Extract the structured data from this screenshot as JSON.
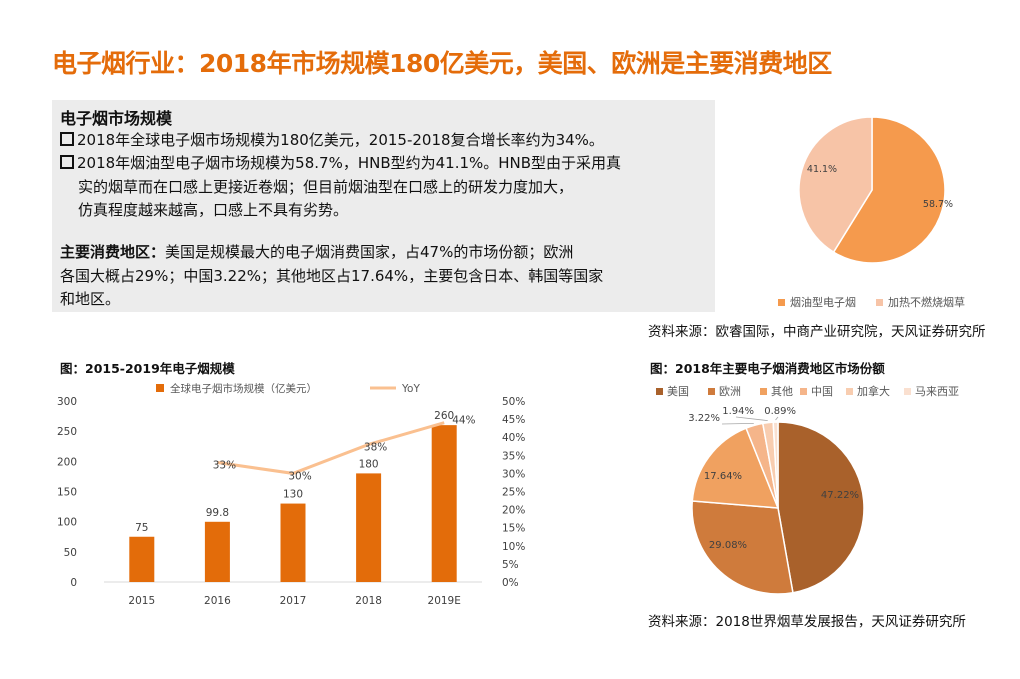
{
  "title": "电子烟行业：2018年市场规模180亿美元，美国、欧洲是主要消费地区",
  "textbox": {
    "heading": "电子烟市场规模",
    "bullet1": "2018年全球电子烟市场规模为180亿美元，2015-2018复合增长率约为34%。",
    "bullet2_line1": "2018年烟油型电子烟市场规模为58.7%，HNB型约为41.1%。HNB型由于采用真",
    "bullet2_line2": "实的烟草而在口感上更接近卷烟；但目前烟油型在口感上的研发力度加大，",
    "bullet2_line3": "仿真程度越来越高，口感上不具有劣势。",
    "region_label": "主要消费地区：",
    "region_line1": "美国是规模最大的电子烟消费国家，占47%的市场份额；欧洲",
    "region_line2": "各国大概占29%；中国3.22%；其他地区占17.64%，主要包含日本、韩国等国家",
    "region_line3": "和地区。"
  },
  "source_top": "资料来源：欧睿国际，中商产业研究院，天风证券研究所",
  "source_bottom": "资料来源：2018世界烟草发展报告，天风证券研究所",
  "chart_data": [
    {
      "type": "pie",
      "title": "",
      "labels": [
        "烟油型电子烟",
        "加热不燃烧烟草"
      ],
      "values": [
        58.7,
        41.1
      ],
      "data_labels": [
        "58.7%",
        "41.1%"
      ],
      "colors": [
        "#f59a4d",
        "#f7c4a7"
      ],
      "legend": "bottom"
    },
    {
      "type": "bar",
      "title": "图：2015-2019年电子烟规模",
      "categories": [
        "2015",
        "2016",
        "2017",
        "2018",
        "2019E"
      ],
      "series": [
        {
          "name": "全球电子烟市场规模（亿美元）",
          "values": [
            75,
            99.8,
            130,
            180,
            260
          ],
          "labels": [
            "75",
            "99.8",
            "130",
            "180",
            "260"
          ],
          "color": "#e36c0a",
          "axis": "left"
        },
        {
          "name": "YoY",
          "values": [
            null,
            33,
            30,
            38,
            44
          ],
          "labels": [
            "",
            "33%",
            "30%",
            "38%",
            "44%"
          ],
          "color": "#fac090",
          "axis": "right",
          "type": "line"
        }
      ],
      "ylim": [
        0,
        300
      ],
      "yticks": [
        "0",
        "50",
        "100",
        "150",
        "200",
        "250",
        "300"
      ],
      "y2lim": [
        0,
        50
      ],
      "y2ticks": [
        "0%",
        "5%",
        "10%",
        "15%",
        "20%",
        "25%",
        "30%",
        "35%",
        "40%",
        "45%",
        "50%"
      ],
      "legend": "top",
      "grid": false
    },
    {
      "type": "pie",
      "title": "图：2018年主要电子烟消费地区市场份额",
      "labels": [
        "美国",
        "欧洲",
        "其他",
        "中国",
        "加拿大",
        "马来西亚"
      ],
      "values": [
        47.22,
        29.08,
        17.64,
        3.22,
        1.94,
        0.89
      ],
      "data_labels": [
        "47.22%",
        "29.08%",
        "17.64%",
        "3.22%",
        "1.94%",
        "0.89%"
      ],
      "colors": [
        "#a9612b",
        "#cf7b3c",
        "#f0a160",
        "#f5b58a",
        "#f8cdb0",
        "#fae0d0"
      ],
      "legend": "top"
    }
  ]
}
